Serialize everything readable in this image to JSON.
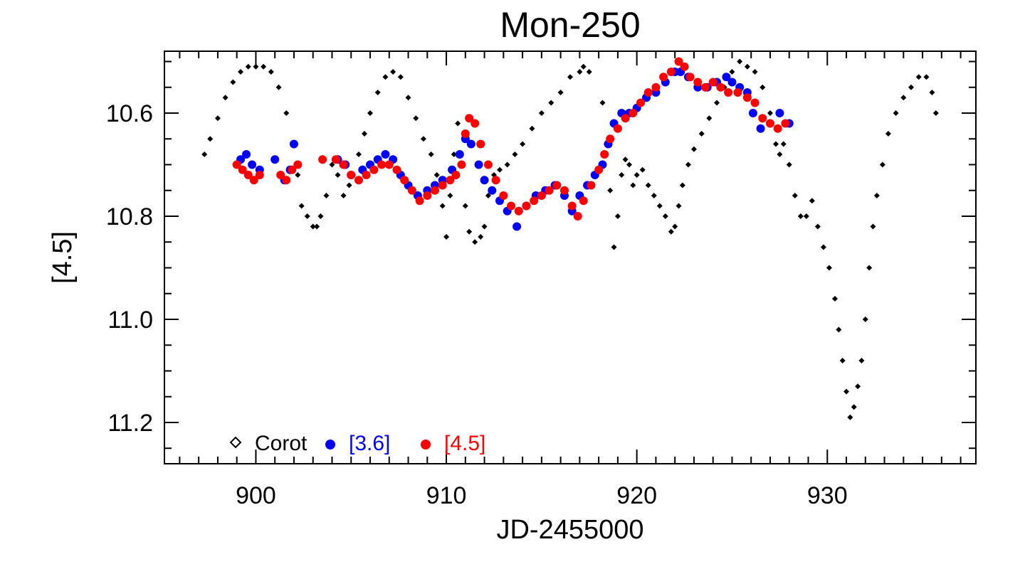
{
  "chart_data": {
    "type": "scatter",
    "title": "Mon-250",
    "xlabel": "JD-2455000",
    "ylabel": "[4.5]",
    "xlim": [
      895.2,
      937.8
    ],
    "ylim": [
      10.48,
      11.28
    ],
    "y_inverted": true,
    "x_ticks": [
      900,
      910,
      920,
      930
    ],
    "x_tick_labels": [
      "900",
      "910",
      "920",
      "930"
    ],
    "y_ticks": [
      10.6,
      10.8,
      11.0,
      11.2
    ],
    "y_tick_labels": [
      "10.6",
      "10.8",
      "11.0",
      "11.2"
    ],
    "x_minor_step": 1,
    "y_minor_step": 0.05,
    "legend_position": "bottom-left",
    "series": [
      {
        "name": "Corot",
        "marker": "diamond",
        "color": "#000000",
        "x": [
          897.3,
          897.6,
          898.0,
          898.4,
          898.8,
          899.2,
          899.6,
          900.0,
          900.4,
          900.8,
          901.2,
          901.6,
          902.0,
          902.2,
          902.4,
          902.7,
          903.0,
          903.2,
          903.4,
          903.7,
          904.0,
          904.3,
          904.6,
          904.9,
          905.1,
          905.4,
          905.7,
          906.0,
          906.4,
          906.8,
          907.2,
          907.6,
          908.0,
          908.4,
          908.8,
          909.2,
          909.5,
          909.8,
          910.0,
          910.2,
          910.4,
          910.6,
          910.8,
          911.0,
          911.2,
          911.5,
          911.8,
          912.0,
          912.2,
          912.5,
          912.8,
          913.2,
          913.6,
          914.0,
          914.5,
          915.0,
          915.5,
          916.0,
          916.5,
          917.0,
          917.2,
          917.5,
          918.2,
          918.4,
          918.6,
          918.8,
          919.0,
          919.2,
          919.4,
          919.6,
          919.8,
          920.0,
          920.3,
          920.6,
          920.9,
          921.2,
          921.5,
          921.8,
          922.0,
          922.2,
          922.4,
          922.7,
          923.0,
          923.4,
          923.8,
          924.2,
          924.6,
          925.0,
          925.4,
          925.8,
          926.2,
          926.6,
          927.0,
          927.3,
          927.5,
          927.7,
          928.0,
          928.3,
          928.6,
          928.9,
          929.2,
          929.5,
          929.8,
          930.1,
          930.4,
          930.6,
          930.8,
          931.0,
          931.2,
          931.4,
          931.6,
          931.8,
          932.0,
          932.2,
          932.4,
          932.6,
          932.9,
          933.2,
          933.6,
          934.0,
          934.4,
          934.8,
          935.2,
          935.5,
          935.7
        ],
        "y": [
          10.68,
          10.65,
          10.61,
          10.57,
          10.54,
          10.52,
          10.51,
          10.51,
          10.51,
          10.52,
          10.55,
          10.6,
          10.66,
          10.72,
          10.78,
          10.8,
          10.82,
          10.82,
          10.8,
          10.76,
          10.7,
          10.72,
          10.76,
          10.74,
          10.72,
          10.68,
          10.64,
          10.6,
          10.56,
          10.53,
          10.52,
          10.53,
          10.57,
          10.61,
          10.65,
          10.68,
          10.72,
          10.78,
          10.84,
          10.76,
          10.68,
          10.62,
          10.7,
          10.78,
          10.83,
          10.85,
          10.84,
          10.82,
          10.76,
          10.72,
          10.71,
          10.7,
          10.68,
          10.66,
          10.63,
          10.6,
          10.58,
          10.56,
          10.53,
          10.52,
          10.51,
          10.52,
          10.58,
          10.66,
          10.75,
          10.86,
          10.8,
          10.72,
          10.69,
          10.7,
          10.74,
          10.72,
          10.71,
          10.74,
          10.76,
          10.78,
          10.8,
          10.83,
          10.82,
          10.78,
          10.74,
          10.7,
          10.67,
          10.64,
          10.61,
          10.58,
          10.55,
          10.52,
          10.5,
          10.51,
          10.52,
          10.55,
          10.6,
          10.66,
          10.68,
          10.66,
          10.7,
          10.76,
          10.8,
          10.8,
          10.77,
          10.82,
          10.86,
          10.9,
          10.96,
          11.02,
          11.08,
          11.14,
          11.19,
          11.17,
          11.13,
          11.08,
          11.0,
          10.9,
          10.82,
          10.76,
          10.7,
          10.64,
          10.6,
          10.57,
          10.55,
          10.53,
          10.53,
          10.56,
          10.6
        ]
      },
      {
        "name": "[3.6]",
        "marker": "circle",
        "color": "#0000ff",
        "x": [
          899.2,
          899.5,
          899.8,
          900.2,
          901.0,
          901.5,
          901.8,
          902.0,
          904.3,
          904.7,
          905.0,
          905.6,
          906.0,
          906.4,
          906.8,
          907.2,
          907.6,
          908.0,
          908.5,
          909.0,
          909.4,
          909.8,
          910.3,
          910.7,
          911.0,
          911.3,
          911.7,
          912.0,
          912.4,
          912.8,
          913.2,
          913.7,
          914.2,
          914.7,
          915.2,
          915.7,
          916.2,
          916.6,
          917.0,
          917.4,
          917.8,
          918.2,
          918.5,
          918.8,
          919.2,
          919.6,
          920.0,
          920.5,
          921.0,
          921.5,
          922.0,
          922.3,
          922.7,
          923.2,
          923.7,
          924.2,
          924.7,
          925.0,
          925.4,
          925.8,
          926.1,
          926.5,
          927.0,
          927.5,
          928.0
        ],
        "y": [
          10.69,
          10.68,
          10.7,
          10.71,
          10.69,
          10.73,
          10.71,
          10.66,
          10.69,
          10.7,
          10.72,
          10.71,
          10.7,
          10.69,
          10.68,
          10.69,
          10.72,
          10.74,
          10.76,
          10.75,
          10.74,
          10.73,
          10.71,
          10.68,
          10.65,
          10.66,
          10.7,
          10.73,
          10.75,
          10.77,
          10.79,
          10.82,
          10.78,
          10.76,
          10.75,
          10.74,
          10.76,
          10.79,
          10.76,
          10.74,
          10.72,
          10.7,
          10.66,
          10.62,
          10.6,
          10.6,
          10.59,
          10.57,
          10.56,
          10.54,
          10.52,
          10.52,
          10.53,
          10.55,
          10.55,
          10.54,
          10.53,
          10.54,
          10.55,
          10.56,
          10.6,
          10.63,
          10.62,
          10.6,
          10.62
        ]
      },
      {
        "name": "[4.5]",
        "marker": "circle",
        "color": "#ff0000",
        "x": [
          899.0,
          899.3,
          899.6,
          899.9,
          900.2,
          901.3,
          901.6,
          901.9,
          902.2,
          903.5,
          904.2,
          904.6,
          905.0,
          905.4,
          905.8,
          906.2,
          906.6,
          907.0,
          907.4,
          907.8,
          908.2,
          908.6,
          909.0,
          909.4,
          909.8,
          910.2,
          910.5,
          910.8,
          911.0,
          911.2,
          911.5,
          911.8,
          912.2,
          912.6,
          913.0,
          913.4,
          913.8,
          914.2,
          914.6,
          915.0,
          915.4,
          915.8,
          916.2,
          916.6,
          916.9,
          917.2,
          917.6,
          918.0,
          918.3,
          918.6,
          919.0,
          919.4,
          919.8,
          920.2,
          920.6,
          921.0,
          921.4,
          921.8,
          922.2,
          922.5,
          922.8,
          923.2,
          923.6,
          924.0,
          924.4,
          924.8,
          925.3,
          925.8,
          926.2,
          926.6,
          927.0,
          927.4,
          927.8
        ],
        "y": [
          10.7,
          10.71,
          10.72,
          10.73,
          10.72,
          10.72,
          10.73,
          10.71,
          10.7,
          10.69,
          10.69,
          10.7,
          10.72,
          10.73,
          10.72,
          10.71,
          10.7,
          10.7,
          10.71,
          10.73,
          10.75,
          10.77,
          10.76,
          10.75,
          10.74,
          10.73,
          10.72,
          10.7,
          10.64,
          10.61,
          10.62,
          10.66,
          10.7,
          10.73,
          10.76,
          10.78,
          10.79,
          10.78,
          10.77,
          10.76,
          10.75,
          10.74,
          10.75,
          10.78,
          10.8,
          10.77,
          10.74,
          10.71,
          10.68,
          10.65,
          10.63,
          10.61,
          10.6,
          10.58,
          10.56,
          10.55,
          10.53,
          10.52,
          10.5,
          10.51,
          10.53,
          10.54,
          10.55,
          10.54,
          10.55,
          10.56,
          10.56,
          10.57,
          10.58,
          10.61,
          10.62,
          10.63,
          10.62
        ]
      }
    ],
    "legend": [
      {
        "label": "Corot",
        "color": "#000000",
        "marker": "diamond"
      },
      {
        "label": "[3.6]",
        "color": "#0000ff",
        "marker": "circle"
      },
      {
        "label": "[4.5]",
        "color": "#ff0000",
        "marker": "circle"
      }
    ]
  }
}
